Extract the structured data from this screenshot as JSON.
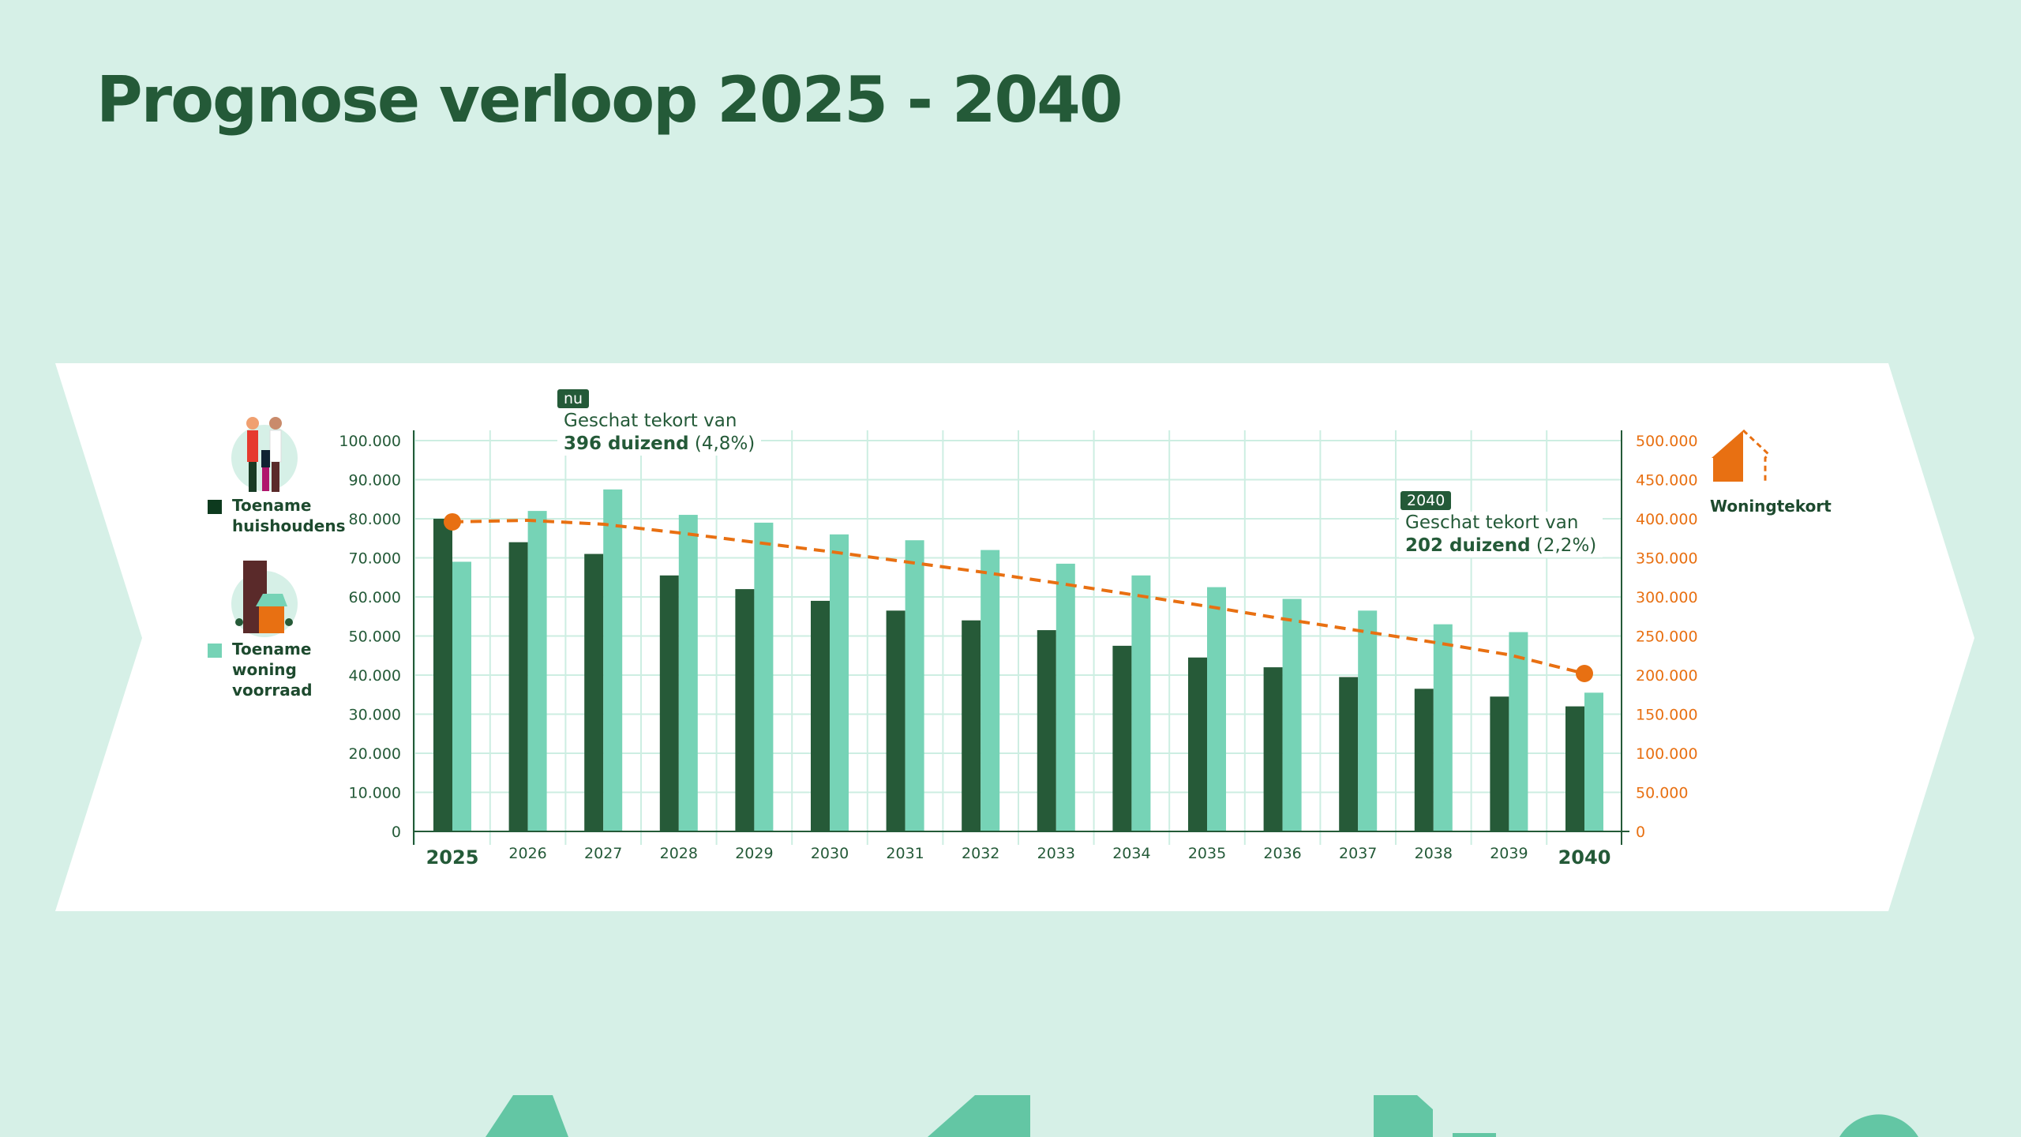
{
  "title": "Prognose verloop 2025 - 2040",
  "legend": {
    "households": "Toename huishoudens",
    "housing": "Toename woning voorraad",
    "shortage": "Woningtekort"
  },
  "annotations": {
    "start": {
      "badge": "nu",
      "line1": "Geschat tekort van",
      "value": "396 duizend",
      "pct": "(4,8%)"
    },
    "end": {
      "badge": "2040",
      "line1": "Geschat tekort van",
      "value": "202 duizend",
      "pct": "(2,2%)"
    }
  },
  "colors": {
    "background": "#d6f0e7",
    "households": "#265a38",
    "housing": "#76d3b6",
    "shortage": "#e87012",
    "grid": "#cdeee2"
  },
  "chart_data": {
    "type": "bar",
    "title": "Prognose verloop 2025 - 2040",
    "categories": [
      "2025",
      "2026",
      "2027",
      "2028",
      "2029",
      "2030",
      "2031",
      "2032",
      "2033",
      "2034",
      "2035",
      "2036",
      "2037",
      "2038",
      "2039",
      "2040"
    ],
    "highlighted_categories": [
      "2025",
      "2040"
    ],
    "series": [
      {
        "name": "Toename huishoudens",
        "axis": "left",
        "type": "bar",
        "color": "#265a38",
        "values": [
          80000,
          74000,
          71000,
          65500,
          62000,
          59000,
          56500,
          54000,
          51500,
          47500,
          44500,
          42000,
          39500,
          36500,
          34500,
          32000
        ]
      },
      {
        "name": "Toename woning voorraad",
        "axis": "left",
        "type": "bar",
        "color": "#76d3b6",
        "values": [
          69000,
          82000,
          87500,
          81000,
          79000,
          76000,
          74500,
          72000,
          68500,
          65500,
          62500,
          59500,
          56500,
          53000,
          51000,
          35500
        ]
      },
      {
        "name": "Woningtekort",
        "axis": "right",
        "type": "line",
        "style": "dashed",
        "color": "#e87012",
        "values": [
          396000,
          398000,
          393000,
          382000,
          370000,
          358000,
          345000,
          332000,
          318000,
          303000,
          288000,
          272000,
          257000,
          242000,
          226000,
          202000
        ]
      }
    ],
    "y_left": {
      "lim": [
        0,
        100000
      ],
      "ticks": [
        "0",
        "10.000",
        "20.000",
        "30.000",
        "40.000",
        "50.000",
        "60.000",
        "70.000",
        "80.000",
        "90.000",
        "100.000"
      ]
    },
    "y_right": {
      "lim": [
        0,
        500000
      ],
      "ticks": [
        "0",
        "50.000",
        "100.000",
        "150.000",
        "200.000",
        "250.000",
        "300.000",
        "350.000",
        "400.000",
        "450.000",
        "500.000"
      ]
    },
    "grid": true
  }
}
